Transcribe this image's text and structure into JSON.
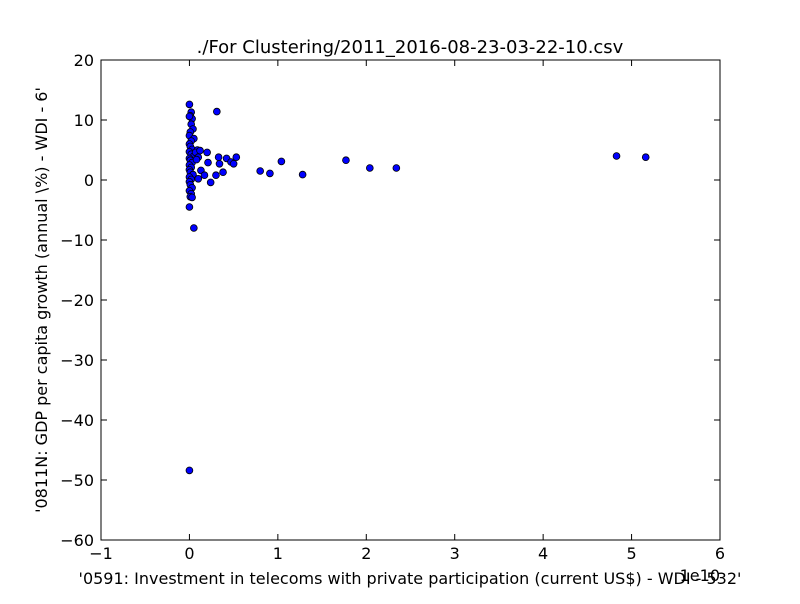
{
  "chart_data": {
    "type": "scatter",
    "title": "./For Clustering/2011_2016-08-23-03-22-10.csv",
    "xlabel": "'0591: Investment in telecoms with private participation  (current US$) - WDI - 532'",
    "ylabel": "'0811N: GDP per capita growth  (annual \\%) - WDI - 6'",
    "x_offset_label": "1e10",
    "xlim": [
      -1,
      6
    ],
    "ylim": [
      -60,
      20
    ],
    "x_ticks": [
      -1,
      0,
      1,
      2,
      3,
      4,
      5,
      6
    ],
    "x_tick_labels": [
      "−1",
      "0",
      "1",
      "2",
      "3",
      "4",
      "5",
      "6"
    ],
    "y_ticks": [
      -60,
      -50,
      -40,
      -30,
      -20,
      -10,
      0,
      10,
      20
    ],
    "y_tick_labels": [
      "−60",
      "−50",
      "−40",
      "−30",
      "−20",
      "−10",
      "0",
      "10",
      "20"
    ],
    "grid": false,
    "marker_color": "#0000ff",
    "points": [
      {
        "x": 0.0,
        "y": 12.6
      },
      {
        "x": 0.02,
        "y": 11.3
      },
      {
        "x": 0.01,
        "y": 10.7
      },
      {
        "x": 0.03,
        "y": 10.2
      },
      {
        "x": 0.0,
        "y": 10.6
      },
      {
        "x": 0.02,
        "y": 9.3
      },
      {
        "x": 0.04,
        "y": 8.5
      },
      {
        "x": 0.01,
        "y": 8.0
      },
      {
        "x": 0.0,
        "y": 7.4
      },
      {
        "x": 0.05,
        "y": 6.9
      },
      {
        "x": 0.02,
        "y": 6.5
      },
      {
        "x": 0.0,
        "y": 6.0
      },
      {
        "x": 0.01,
        "y": 5.6
      },
      {
        "x": 0.03,
        "y": 5.1
      },
      {
        "x": 0.0,
        "y": 4.7
      },
      {
        "x": 0.02,
        "y": 4.3
      },
      {
        "x": 0.05,
        "y": 4.0
      },
      {
        "x": 0.0,
        "y": 3.6
      },
      {
        "x": 0.01,
        "y": 3.3
      },
      {
        "x": 0.03,
        "y": 2.9
      },
      {
        "x": 0.0,
        "y": 2.5
      },
      {
        "x": 0.02,
        "y": 2.1
      },
      {
        "x": 0.0,
        "y": 1.7
      },
      {
        "x": 0.01,
        "y": 1.3
      },
      {
        "x": 0.04,
        "y": 0.9
      },
      {
        "x": 0.0,
        "y": 0.5
      },
      {
        "x": 0.02,
        "y": 0.1
      },
      {
        "x": 0.0,
        "y": -0.3
      },
      {
        "x": 0.01,
        "y": -0.8
      },
      {
        "x": 0.03,
        "y": -1.3
      },
      {
        "x": 0.0,
        "y": -1.8
      },
      {
        "x": 0.02,
        "y": -2.3
      },
      {
        "x": 0.01,
        "y": -2.8
      },
      {
        "x": 0.03,
        "y": -2.9
      },
      {
        "x": 0.0,
        "y": -4.5
      },
      {
        "x": 0.05,
        "y": -8.0
      },
      {
        "x": 0.0,
        "y": -48.4
      },
      {
        "x": 0.09,
        "y": 5.0
      },
      {
        "x": 0.07,
        "y": 4.6
      },
      {
        "x": 0.12,
        "y": 4.9
      },
      {
        "x": 0.1,
        "y": 3.8
      },
      {
        "x": 0.08,
        "y": 3.4
      },
      {
        "x": 0.13,
        "y": 1.6
      },
      {
        "x": 0.1,
        "y": 0.2
      },
      {
        "x": 0.17,
        "y": 0.8
      },
      {
        "x": 0.2,
        "y": 4.6
      },
      {
        "x": 0.21,
        "y": 2.9
      },
      {
        "x": 0.24,
        "y": -0.4
      },
      {
        "x": 0.31,
        "y": 11.4
      },
      {
        "x": 0.33,
        "y": 3.8
      },
      {
        "x": 0.34,
        "y": 2.7
      },
      {
        "x": 0.3,
        "y": 0.8
      },
      {
        "x": 0.38,
        "y": 1.3
      },
      {
        "x": 0.42,
        "y": 3.6
      },
      {
        "x": 0.47,
        "y": 3.0
      },
      {
        "x": 0.5,
        "y": 2.7
      },
      {
        "x": 0.53,
        "y": 3.8
      },
      {
        "x": 0.8,
        "y": 1.5
      },
      {
        "x": 0.91,
        "y": 1.1
      },
      {
        "x": 1.04,
        "y": 3.1
      },
      {
        "x": 1.28,
        "y": 0.9
      },
      {
        "x": 1.77,
        "y": 3.3
      },
      {
        "x": 2.04,
        "y": 2.0
      },
      {
        "x": 2.34,
        "y": 2.0
      },
      {
        "x": 4.83,
        "y": 4.0
      },
      {
        "x": 5.16,
        "y": 3.8
      }
    ]
  }
}
